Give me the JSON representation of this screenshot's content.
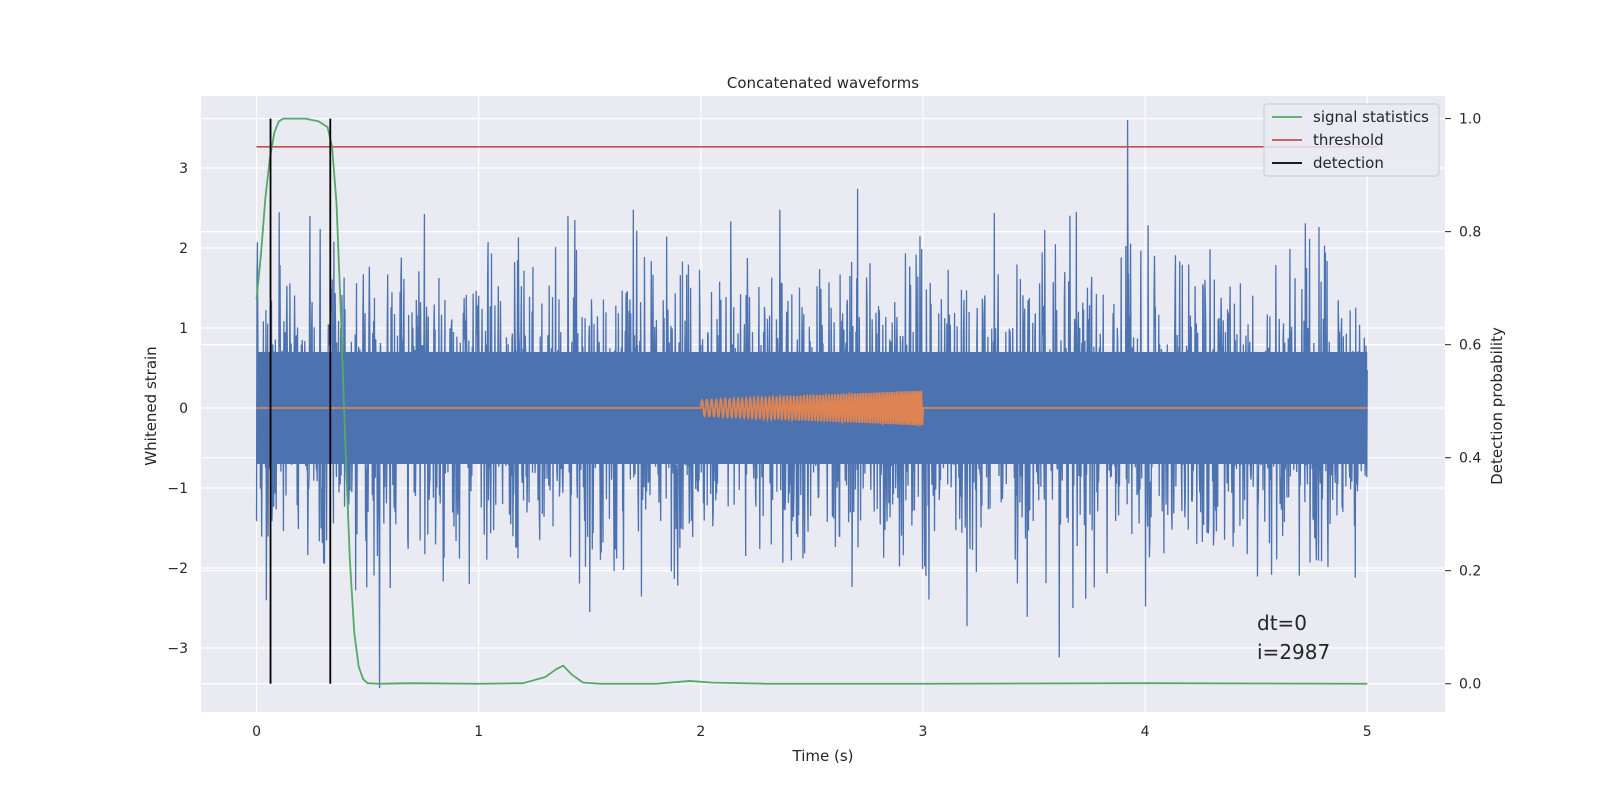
{
  "chart_data": {
    "type": "line",
    "title": "Concatenated waveforms",
    "xlabel": "Time (s)",
    "ylabel": "Whitened strain",
    "y2label": "Detection probability",
    "xlim": [
      -0.25,
      5.35
    ],
    "ylim": [
      -3.8,
      3.9
    ],
    "y2lim": [
      -0.05,
      1.04
    ],
    "x_ticks": [
      0,
      1,
      2,
      3,
      4,
      5
    ],
    "y_ticks": [
      -3,
      -2,
      -1,
      0,
      1,
      2,
      3
    ],
    "y2_ticks": [
      0.0,
      0.2,
      0.4,
      0.6,
      0.8,
      1.0
    ],
    "x_tick_labels": [
      "0",
      "1",
      "2",
      "3",
      "4",
      "5"
    ],
    "y_tick_labels": [
      "−3",
      "−2",
      "−1",
      "0",
      "1",
      "2",
      "3"
    ],
    "y2_tick_labels": [
      "0.0",
      "0.2",
      "0.4",
      "0.6",
      "0.8",
      "1.0"
    ],
    "grid": true,
    "legend_position": "top-right",
    "annotations": [
      "dt=0",
      "i=2987"
    ],
    "colors": {
      "background": "#EAEAF2",
      "strain": "#4C72B0",
      "template": "#DD8452",
      "signal_statistics": "#55A868",
      "threshold": "#C44E52",
      "detection": "#000000"
    },
    "series": [
      {
        "name": "",
        "axis": "left",
        "description_free": true,
        "x_range": [
          0,
          5
        ],
        "amplitude_band": [
          -0.7,
          0.7
        ],
        "peak_envelope": [
          -3.5,
          3.6
        ]
      },
      {
        "name": "",
        "axis": "left",
        "x": [
          0,
          2.0,
          3.0,
          5.0
        ],
        "y": [
          0,
          0,
          0,
          0
        ],
        "chirp_range": [
          2.0,
          3.0
        ],
        "chirp_amplitude": [
          0.1,
          0.22
        ]
      },
      {
        "name": "signal statistics",
        "axis": "right",
        "x": [
          0.0,
          0.02,
          0.04,
          0.06,
          0.08,
          0.1,
          0.12,
          0.16,
          0.22,
          0.28,
          0.32,
          0.34,
          0.36,
          0.38,
          0.4,
          0.42,
          0.44,
          0.46,
          0.48,
          0.5,
          0.55,
          0.7,
          1.0,
          1.2,
          1.3,
          1.35,
          1.38,
          1.42,
          1.47,
          1.55,
          1.8,
          1.95,
          2.05,
          2.3,
          3.0,
          4.0,
          5.0
        ],
        "y": [
          0.68,
          0.76,
          0.86,
          0.93,
          0.975,
          0.995,
          1.0,
          1.0,
          1.0,
          0.995,
          0.985,
          0.95,
          0.85,
          0.65,
          0.42,
          0.22,
          0.09,
          0.03,
          0.008,
          0.001,
          0.0,
          0.001,
          0.0,
          0.001,
          0.012,
          0.026,
          0.032,
          0.016,
          0.002,
          0.0,
          0.0,
          0.005,
          0.002,
          0.0,
          0.0,
          0.001,
          0.0
        ]
      },
      {
        "name": "threshold",
        "axis": "right",
        "x": [
          0,
          5.05
        ],
        "y": [
          0.95,
          0.95
        ]
      },
      {
        "name": "detection",
        "axis": "right",
        "x": [
          0.063,
          0.332
        ],
        "y_span": [
          0.0,
          1.0
        ]
      }
    ]
  }
}
